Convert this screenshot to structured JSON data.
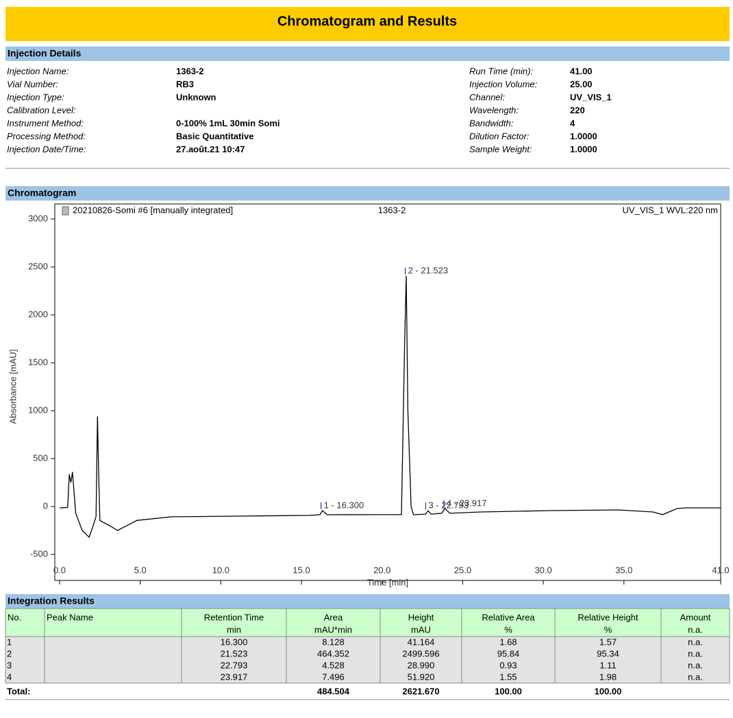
{
  "header": {
    "title": "Chromatogram and Results"
  },
  "injection_details": {
    "title": "Injection Details",
    "left": [
      {
        "label": "Injection Name:",
        "value": "1363-2"
      },
      {
        "label": "Vial Number:",
        "value": "RB3"
      },
      {
        "label": "Injection Type:",
        "value": "Unknown"
      },
      {
        "label": "Calibration Level:"
      },
      {
        "label": "Instrument Method:",
        "value": "0-100% 1mL 30min Somi"
      },
      {
        "label": "Processing Method:",
        "value": "Basic Quantitative"
      },
      {
        "label": "Injection Date/Time:",
        "value": "27.août.21 10:47"
      }
    ],
    "right": [
      {
        "label": "Run Time (min):",
        "value": "41.00"
      },
      {
        "label": "Injection Volume:",
        "value": "25.00"
      },
      {
        "label": "Channel:",
        "value": "UV_VIS_1"
      },
      {
        "label": "Wavelength:",
        "value": "220"
      },
      {
        "label": "Bandwidth:",
        "value": "4"
      },
      {
        "label": "Dilution Factor:",
        "value": "1.0000"
      },
      {
        "label": "Sample Weight:",
        "value": "1.0000"
      }
    ]
  },
  "chromatogram_section": {
    "title": "Chromatogram"
  },
  "chart_data": {
    "type": "line",
    "title": "1363-2",
    "header_left": "20210826-Somi #6 [manually integrated]",
    "header_right": "UV_VIS_1 WVL:220 nm",
    "x_label": "Time [min]",
    "y_label": "Absorbance [mAU]",
    "x": [
      0,
      0.5,
      0.6,
      0.7,
      0.8,
      1.0,
      1.4,
      1.83,
      2.05,
      2.26,
      2.35,
      2.43,
      2.5,
      2.7,
      3.1,
      3.6,
      4.0,
      4.8,
      6.95,
      11.2,
      15.5,
      16.15,
      16.3,
      16.6,
      19.7,
      21.2,
      21.4,
      21.5,
      21.6,
      21.8,
      21.95,
      22.7,
      22.85,
      23.05,
      23.7,
      23.9,
      24.2,
      26.1,
      30.4,
      34.65,
      36.8,
      37.4,
      38.3,
      38.9,
      41
    ],
    "series": [
      {
        "color": "#000000",
        "values": [
          -15,
          -10,
          335,
          250,
          360,
          -70,
          -250,
          -320,
          -215,
          -105,
          940,
          285,
          -145,
          -165,
          -200,
          -250,
          -215,
          -145,
          -107,
          -100,
          -93,
          -86,
          -43,
          -86,
          -85,
          -85,
          1714,
          2407,
          1000,
          0,
          -86,
          -79,
          -45,
          -79,
          -71,
          -21,
          -71,
          -57,
          -43,
          -36,
          -57,
          -85,
          -21,
          -14,
          -14
        ]
      }
    ],
    "peaks": [
      {
        "label": "1 - 16.300",
        "x": 16.3,
        "y": -43
      },
      {
        "label": "2 - 21.523",
        "x": 21.523,
        "y": 2407
      },
      {
        "label": "3 - 22.793",
        "x": 22.793,
        "y": -45
      },
      {
        "label": "4 - 23.917",
        "x": 23.917,
        "y": -21
      }
    ],
    "peak_color": "#0000cc",
    "xlim": [
      0,
      41
    ],
    "ylim": [
      -500,
      3000
    ],
    "xticks": [
      {
        "value": 0,
        "label": "0.0"
      },
      {
        "value": 5,
        "label": "5.0"
      },
      {
        "value": 10,
        "label": "10.0"
      },
      {
        "value": 15,
        "label": "15.0"
      },
      {
        "value": 20,
        "label": "20.0"
      },
      {
        "value": 25,
        "label": "25.0"
      },
      {
        "value": 30,
        "label": "30.0"
      },
      {
        "value": 35,
        "label": "35.0"
      },
      {
        "value": 41,
        "label": "41.0"
      }
    ],
    "yticks": [
      -500,
      0,
      500,
      1000,
      1500,
      2000,
      2500,
      3000
    ]
  },
  "integration_results": {
    "title": "Integration Results",
    "columns": [
      {
        "name": "No."
      },
      {
        "name": "Peak Name"
      },
      {
        "name": "Retention Time",
        "unit": "min"
      },
      {
        "name": "Area",
        "unit": "mAU*min"
      },
      {
        "name": "Height",
        "unit": "mAU"
      },
      {
        "name": "Relative Area",
        "unit": "%"
      },
      {
        "name": "Relative Height",
        "unit": "%"
      },
      {
        "name": "Amount",
        "unit": "n.a."
      }
    ],
    "rows": [
      {
        "no": "1",
        "values": [
          "16.300",
          "8.128",
          "41.164",
          "1.68",
          "1.57",
          "n.a."
        ]
      },
      {
        "no": "2",
        "values": [
          "21.523",
          "464.352",
          "2499.596",
          "95.84",
          "95.34",
          "n.a."
        ]
      },
      {
        "no": "3",
        "values": [
          "22.793",
          "4.528",
          "28.990",
          "0.93",
          "1.11",
          "n.a."
        ]
      },
      {
        "no": "4",
        "values": [
          "23.917",
          "7.496",
          "51.920",
          "1.55",
          "1.98",
          "n.a."
        ]
      }
    ],
    "total": {
      "label": "Total:",
      "values": [
        "484.504",
        "2621.670",
        "100.00",
        "100.00"
      ]
    }
  }
}
